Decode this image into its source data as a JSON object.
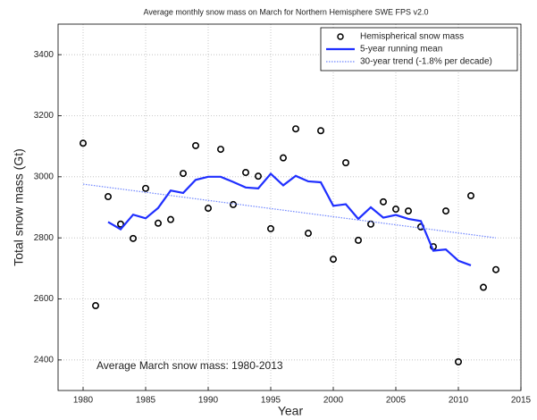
{
  "chart_data": {
    "type": "scatter-line",
    "title": "Average monthly snow mass on March for Northern Hemisphere SWE FPS v2.0",
    "xlabel": "Year",
    "ylabel": "Total snow mass (Gt)",
    "annotation": "Average March snow mass: 1980-2013",
    "xlim": [
      1978,
      2015
    ],
    "ylim": [
      2300,
      3500
    ],
    "xticks": [
      1980,
      1985,
      1990,
      1995,
      2000,
      2005,
      2010,
      2015
    ],
    "yticks": [
      2400,
      2600,
      2800,
      3000,
      3200,
      3400
    ],
    "grid": true,
    "legend": "upper right",
    "series": [
      {
        "name": "Hemispherical snow mass",
        "kind": "marker",
        "color": "#000000",
        "x": [
          1980,
          1981,
          1982,
          1983,
          1984,
          1985,
          1986,
          1987,
          1988,
          1989,
          1990,
          1991,
          1992,
          1993,
          1994,
          1995,
          1996,
          1997,
          1998,
          1999,
          2000,
          2001,
          2002,
          2003,
          2004,
          2005,
          2006,
          2007,
          2008,
          2009,
          2010,
          2011,
          2012,
          2013
        ],
        "values": [
          3110,
          2578,
          2935,
          2845,
          2798,
          2962,
          2848,
          2860,
          3011,
          3102,
          2897,
          3090,
          2909,
          3014,
          3002,
          2830,
          3062,
          3157,
          2815,
          3151,
          2730,
          3046,
          2792,
          2845,
          2918,
          2894,
          2888,
          2836,
          2771,
          2888,
          2394,
          2938,
          2638,
          2696
        ]
      },
      {
        "name": "5-year running mean",
        "kind": "line",
        "color": "#1f2fff",
        "x": [
          1982,
          1983,
          1984,
          1985,
          1986,
          1987,
          1988,
          1989,
          1990,
          1991,
          1992,
          1993,
          1994,
          1995,
          1996,
          1997,
          1998,
          1999,
          2000,
          2001,
          2002,
          2003,
          2004,
          2005,
          2006,
          2007,
          2008,
          2009,
          2010,
          2011
        ],
        "values": [
          2852,
          2828,
          2876,
          2864,
          2898,
          2955,
          2947,
          2990,
          3000,
          3000,
          2983,
          2965,
          2962,
          3010,
          2972,
          3003,
          2985,
          2982,
          2905,
          2910,
          2862,
          2900,
          2866,
          2875,
          2862,
          2855,
          2758,
          2762,
          2725,
          2710
        ]
      },
      {
        "name": "30-year trend (-1.8% per decade)",
        "kind": "dotted",
        "color": "#6f86ff",
        "x": [
          1980,
          2013
        ],
        "values": [
          2976,
          2800
        ]
      }
    ]
  }
}
